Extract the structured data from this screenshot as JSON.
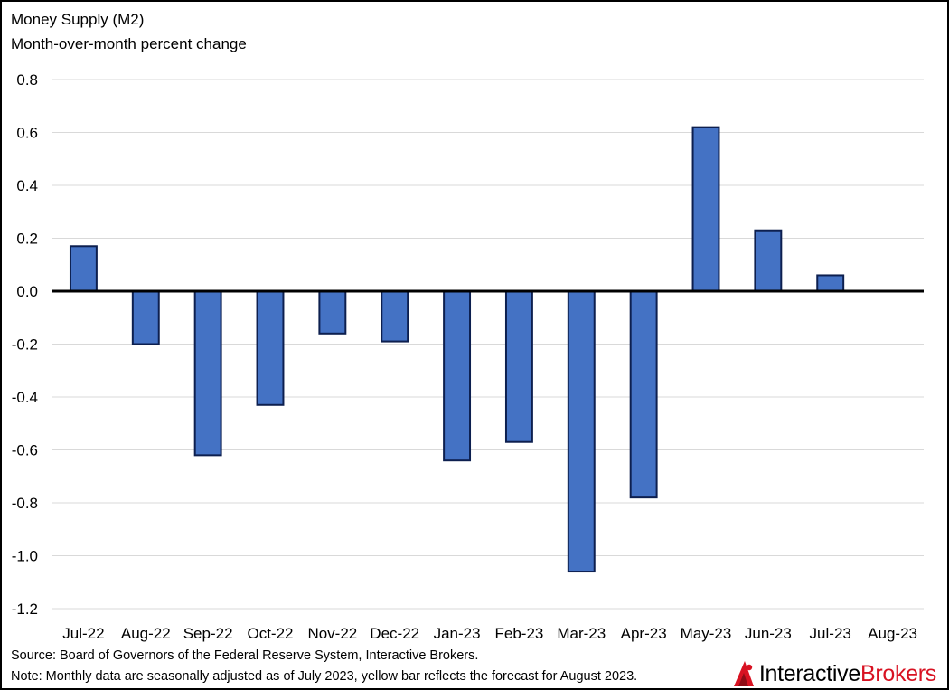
{
  "chart_data": {
    "type": "bar",
    "title": "Money Supply (M2)",
    "subtitle": "Month-over-month percent change",
    "categories": [
      "Jul-22",
      "Aug-22",
      "Sep-22",
      "Oct-22",
      "Nov-22",
      "Dec-22",
      "Jan-23",
      "Feb-23",
      "Mar-23",
      "Apr-23",
      "May-23",
      "Jun-23",
      "Jul-23",
      "Aug-23"
    ],
    "values": [
      0.17,
      -0.2,
      -0.62,
      -0.43,
      -0.16,
      -0.19,
      -0.64,
      -0.57,
      -1.06,
      -0.78,
      0.62,
      0.23,
      0.06,
      null
    ],
    "ylim": [
      -1.2,
      0.8
    ],
    "yticks": [
      "0.8",
      "0.6",
      "0.4",
      "0.2",
      "0.0",
      "-0.2",
      "-0.4",
      "-0.6",
      "-0.8",
      "-1.0",
      "-1.2"
    ],
    "grid": true,
    "bar_color": "#4472c4",
    "bar_outline_color": "#0d1f4f",
    "gridline_color": "#d9d9d9"
  },
  "footer": {
    "source": "Source: Board of Governors of the Federal Reserve System, Interactive Brokers.",
    "note": "Note: Monthly data are seasonally adjusted as of July 2023, yellow bar reflects the forecast for August 2023."
  },
  "brand": {
    "name_part1": "Interactive",
    "name_part2": "Brokers",
    "icon": "interactive-brokers-logo-icon",
    "accent_color": "#d81222"
  }
}
